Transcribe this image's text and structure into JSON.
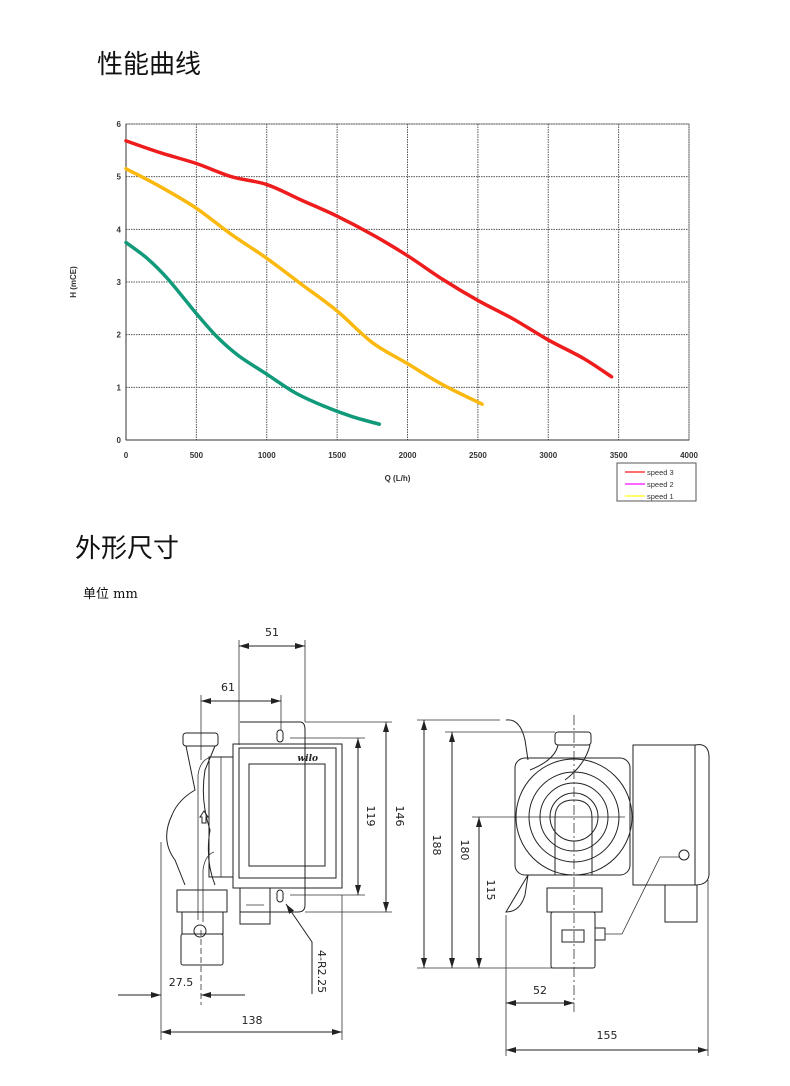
{
  "sections": {
    "performance_title": "性能曲线",
    "dimensions_title": "外形尺寸",
    "unit_label": "单位 mm"
  },
  "chart_data": {
    "type": "line",
    "xlabel": "Q (L/h)",
    "ylabel": "H (mCE)",
    "xlim": [
      0,
      4000
    ],
    "ylim": [
      0,
      6
    ],
    "xticks": [
      0,
      500,
      1000,
      1500,
      2000,
      2500,
      3000,
      3500,
      4000
    ],
    "yticks": [
      0,
      1,
      2,
      3,
      4,
      5,
      6
    ],
    "grid": true,
    "legend_position": "bottom-right",
    "legend": [
      {
        "name": "speed 3",
        "color": "#ff3b3b"
      },
      {
        "name": "speed 2",
        "color": "#ff33ff"
      },
      {
        "name": "speed 1",
        "color": "#ffff33"
      }
    ],
    "series": [
      {
        "color": "#ee1c1c",
        "x": [
          0,
          250,
          500,
          750,
          1000,
          1250,
          1500,
          1750,
          2000,
          2250,
          2500,
          2750,
          3000,
          3250,
          3450
        ],
        "y": [
          5.68,
          5.45,
          5.25,
          5.0,
          4.85,
          4.55,
          4.25,
          3.9,
          3.5,
          3.05,
          2.65,
          2.3,
          1.9,
          1.55,
          1.2
        ]
      },
      {
        "color": "#fbb80f",
        "x": [
          0,
          250,
          500,
          750,
          1000,
          1250,
          1500,
          1750,
          2000,
          2250,
          2530
        ],
        "y": [
          5.15,
          4.8,
          4.4,
          3.9,
          3.45,
          2.95,
          2.45,
          1.85,
          1.45,
          1.05,
          0.68
        ]
      },
      {
        "color": "#109a7a",
        "x": [
          0,
          150,
          300,
          500,
          650,
          800,
          1000,
          1200,
          1400,
          1600,
          1800
        ],
        "y": [
          3.75,
          3.45,
          3.05,
          2.4,
          1.95,
          1.6,
          1.25,
          0.9,
          0.65,
          0.45,
          0.3
        ]
      }
    ]
  },
  "drawing": {
    "brand": "wilo",
    "dims": {
      "d51": "51",
      "d61": "61",
      "d119": "119",
      "d146": "146",
      "d27_5": "27.5",
      "d138": "138",
      "r": "4-R2.25",
      "d188": "188",
      "d180": "180",
      "d115": "115",
      "d52": "52",
      "d155": "155"
    }
  }
}
